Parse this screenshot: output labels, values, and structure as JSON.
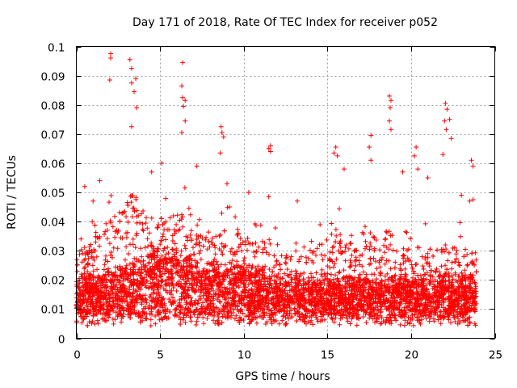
{
  "chart_data": {
    "type": "scatter",
    "title": "Day 171 of 2018, Rate Of TEC Index for receiver p052",
    "xlabel": "GPS time / hours",
    "ylabel": "ROTI / TECUs",
    "xlim": [
      0,
      25
    ],
    "ylim": [
      0,
      0.1
    ],
    "xticks": [
      0,
      5,
      10,
      15,
      20,
      25
    ],
    "yticks": [
      0,
      0.01,
      0.02,
      0.03,
      0.04,
      0.05,
      0.06,
      0.07,
      0.08,
      0.09,
      0.1
    ],
    "xtick_labels": [
      "0",
      "5",
      "10",
      "15",
      "20",
      "25"
    ],
    "ytick_labels": [
      "0",
      "0.01",
      "0.02",
      "0.03",
      "0.04",
      "0.05",
      "0.06",
      "0.07",
      "0.08",
      "0.09",
      "0.1"
    ],
    "grid": true,
    "marker": "+",
    "color": "#ff0000",
    "data_range_x": [
      0,
      23.9
    ],
    "series": [
      {
        "name": "ROTI",
        "notable_points": [
          [
            2.05,
            0.0975
          ],
          [
            2.05,
            0.096
          ],
          [
            2.0,
            0.0885
          ],
          [
            3.2,
            0.0955
          ],
          [
            3.3,
            0.0925
          ],
          [
            3.55,
            0.089
          ],
          [
            3.3,
            0.0875
          ],
          [
            3.45,
            0.0845
          ],
          [
            3.6,
            0.079
          ],
          [
            3.3,
            0.0725
          ],
          [
            6.35,
            0.0945
          ],
          [
            6.3,
            0.0865
          ],
          [
            6.35,
            0.0825
          ],
          [
            6.5,
            0.0815
          ],
          [
            6.4,
            0.0795
          ],
          [
            6.5,
            0.0745
          ],
          [
            6.3,
            0.0705
          ],
          [
            8.65,
            0.0725
          ],
          [
            8.7,
            0.0705
          ],
          [
            8.8,
            0.069
          ],
          [
            8.6,
            0.0635
          ],
          [
            11.6,
            0.066
          ],
          [
            11.5,
            0.065
          ],
          [
            11.6,
            0.064
          ],
          [
            15.5,
            0.0655
          ],
          [
            15.4,
            0.0635
          ],
          [
            15.6,
            0.0625
          ],
          [
            17.6,
            0.0695
          ],
          [
            17.5,
            0.0655
          ],
          [
            17.6,
            0.061
          ],
          [
            18.7,
            0.083
          ],
          [
            18.8,
            0.0815
          ],
          [
            18.75,
            0.079
          ],
          [
            18.7,
            0.0745
          ],
          [
            18.8,
            0.0715
          ],
          [
            20.3,
            0.0655
          ],
          [
            20.2,
            0.0625
          ],
          [
            20.4,
            0.058
          ],
          [
            22.05,
            0.0805
          ],
          [
            22.15,
            0.0785
          ],
          [
            22.0,
            0.0745
          ],
          [
            22.1,
            0.0715
          ],
          [
            22.3,
            0.075
          ],
          [
            22.4,
            0.0685
          ],
          [
            21.9,
            0.063
          ],
          [
            23.6,
            0.061
          ],
          [
            23.7,
            0.059
          ],
          [
            23.5,
            0.047
          ],
          [
            23.7,
            0.0475
          ],
          [
            0.5,
            0.052
          ],
          [
            1.0,
            0.047
          ],
          [
            1.4,
            0.054
          ],
          [
            4.5,
            0.057
          ],
          [
            5.1,
            0.06
          ],
          [
            7.2,
            0.059
          ],
          [
            9.0,
            0.053
          ],
          [
            10.3,
            0.05
          ],
          [
            13.2,
            0.047
          ],
          [
            16.0,
            0.058
          ],
          [
            19.5,
            0.057
          ],
          [
            21.0,
            0.055
          ],
          [
            23.0,
            0.049
          ]
        ],
        "envelope_hours": [
          0,
          0.5,
          1,
          1.5,
          2,
          2.5,
          3,
          3.5,
          4,
          4.5,
          5,
          5.5,
          6,
          6.5,
          7,
          7.5,
          8,
          8.5,
          9,
          9.5,
          10,
          10.5,
          11,
          11.5,
          12,
          12.5,
          13,
          13.5,
          14,
          14.5,
          15,
          15.5,
          16,
          16.5,
          17,
          17.5,
          18,
          18.5,
          19,
          19.5,
          20,
          20.5,
          21,
          21.5,
          22,
          22.5,
          23,
          23.5,
          23.9
        ],
        "envelope_median": [
          0.012,
          0.012,
          0.012,
          0.013,
          0.014,
          0.014,
          0.015,
          0.016,
          0.017,
          0.018,
          0.019,
          0.019,
          0.018,
          0.017,
          0.016,
          0.015,
          0.015,
          0.015,
          0.015,
          0.015,
          0.015,
          0.014,
          0.014,
          0.013,
          0.013,
          0.012,
          0.012,
          0.012,
          0.012,
          0.012,
          0.012,
          0.012,
          0.012,
          0.012,
          0.012,
          0.012,
          0.012,
          0.012,
          0.012,
          0.012,
          0.012,
          0.012,
          0.012,
          0.012,
          0.012,
          0.012,
          0.012,
          0.012,
          0.012
        ],
        "envelope_upper": [
          0.034,
          0.036,
          0.04,
          0.042,
          0.047,
          0.05,
          0.055,
          0.06,
          0.052,
          0.05,
          0.048,
          0.047,
          0.05,
          0.048,
          0.042,
          0.04,
          0.04,
          0.04,
          0.045,
          0.042,
          0.04,
          0.038,
          0.04,
          0.045,
          0.035,
          0.033,
          0.032,
          0.034,
          0.035,
          0.037,
          0.04,
          0.045,
          0.04,
          0.037,
          0.036,
          0.04,
          0.041,
          0.045,
          0.04,
          0.038,
          0.038,
          0.036,
          0.036,
          0.035,
          0.038,
          0.037,
          0.036,
          0.036,
          0.035
        ]
      }
    ]
  }
}
